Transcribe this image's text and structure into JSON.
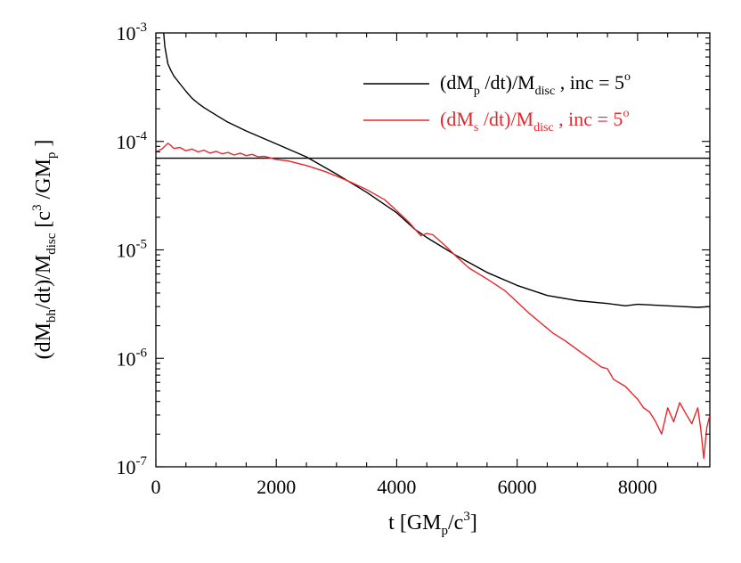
{
  "chart_data": {
    "type": "line",
    "xscale": "linear",
    "yscale": "log",
    "xlim": [
      0,
      9200
    ],
    "ylim": [
      1e-07,
      0.001
    ],
    "x_ticks": [
      0,
      2000,
      4000,
      6000,
      8000
    ],
    "x_tick_labels": [
      "0",
      "2000",
      "4000",
      "6000",
      "8000"
    ],
    "y_ticks": [
      {
        "value": 0.001,
        "base": "10",
        "exp": "-3"
      },
      {
        "value": 0.0001,
        "base": "10",
        "exp": "-4"
      },
      {
        "value": 1e-05,
        "base": "10",
        "exp": "-5"
      },
      {
        "value": 1e-06,
        "base": "10",
        "exp": "-6"
      },
      {
        "value": 1e-07,
        "base": "10",
        "exp": "-7"
      }
    ],
    "xlabel": {
      "pre": "t [GM",
      "sub": "p",
      "mid": "/c",
      "sup": "3",
      "post": "]"
    },
    "ylabel": {
      "t1": "(dM",
      "s1": "bh",
      "t2": "/dt)/M",
      "s2": "disc",
      "t3": " [c",
      "p3": "3",
      "t4": " /GM",
      "s4": "p",
      "t5": " ]"
    },
    "legend": {
      "position": "top-right",
      "entries": [
        {
          "t1": "(dM",
          "s1": "p",
          "t2": " /dt)/M",
          "s2": "disc",
          "t3": " , inc = 5",
          "p3": "o",
          "color": "#000000"
        },
        {
          "t1": "(dM",
          "s1": "s",
          "t2": " /dt)/M",
          "s2": "disc",
          "t3": " , inc = 5",
          "p3": "o",
          "color": "#e8262b"
        }
      ]
    },
    "reference_line": {
      "y": 7e-05,
      "color": "#000000"
    },
    "series": [
      {
        "name": "(dMp/dt)/Mdisc, inc = 5°",
        "color": "#000000",
        "x": [
          130,
          150,
          200,
          250,
          300,
          400,
          500,
          600,
          700,
          800,
          1000,
          1200,
          1500,
          2000,
          2500,
          3000,
          3500,
          4000,
          4300,
          4500,
          5000,
          5500,
          6000,
          6500,
          7000,
          7500,
          7800,
          8000,
          8500,
          9000,
          9200
        ],
        "y": [
          0.001,
          0.00075,
          0.00052,
          0.00045,
          0.0004,
          0.00034,
          0.00029,
          0.00025,
          0.000225,
          0.000205,
          0.000175,
          0.00015,
          0.000125,
          9.5e-05,
          7.2e-05,
          5e-05,
          3.4e-05,
          2.2e-05,
          1.55e-05,
          1.3e-05,
          8.8e-06,
          6.2e-06,
          4.7e-06,
          3.8e-06,
          3.4e-06,
          3.2e-06,
          3.05e-06,
          3.15e-06,
          3.05e-06,
          2.95e-06,
          3e-06
        ]
      },
      {
        "name": "(dMs/dt)/Mdisc, inc = 5°",
        "color": "#e8262b",
        "x": [
          0,
          100,
          200,
          250,
          300,
          400,
          500,
          600,
          700,
          800,
          900,
          1000,
          1100,
          1200,
          1300,
          1400,
          1500,
          1600,
          1700,
          1800,
          2000,
          2200,
          2500,
          2800,
          3000,
          3200,
          3500,
          3800,
          4000,
          4200,
          4400,
          4500,
          4600,
          4800,
          5000,
          5200,
          5500,
          5800,
          6000,
          6200,
          6400,
          6600,
          6800,
          7000,
          7200,
          7400,
          7500,
          7600,
          7800,
          7900,
          8000,
          8100,
          8200,
          8300,
          8400,
          8500,
          8600,
          8700,
          8800,
          8900,
          9000,
          9050,
          9100,
          9150,
          9200
        ],
        "y": [
          8e-05,
          8.5e-05,
          9.6e-05,
          9.2e-05,
          8.6e-05,
          8.8e-05,
          8.2e-05,
          8.5e-05,
          8e-05,
          8.3e-05,
          7.8e-05,
          8.1e-05,
          7.7e-05,
          7.9e-05,
          7.5e-05,
          7.8e-05,
          7.4e-05,
          7.6e-05,
          7.2e-05,
          7.3e-05,
          6.8e-05,
          6.6e-05,
          6e-05,
          5.3e-05,
          4.8e-05,
          4.3e-05,
          3.6e-05,
          2.9e-05,
          2.3e-05,
          1.8e-05,
          1.35e-05,
          1.42e-05,
          1.38e-05,
          1.1e-05,
          8.6e-06,
          6.8e-06,
          5.4e-06,
          4.2e-06,
          3.3e-06,
          2.6e-06,
          2.1e-06,
          1.7e-06,
          1.45e-06,
          1.2e-06,
          1e-06,
          8.3e-07,
          8e-07,
          6.4e-07,
          5.5e-07,
          4.8e-07,
          4.2e-07,
          3.5e-07,
          3.2e-07,
          2.6e-07,
          2e-07,
          3.5e-07,
          2.6e-07,
          3.9e-07,
          3.1e-07,
          2.5e-07,
          3.5e-07,
          2.2e-07,
          1.2e-07,
          2.3e-07,
          3e-07
        ]
      }
    ]
  }
}
